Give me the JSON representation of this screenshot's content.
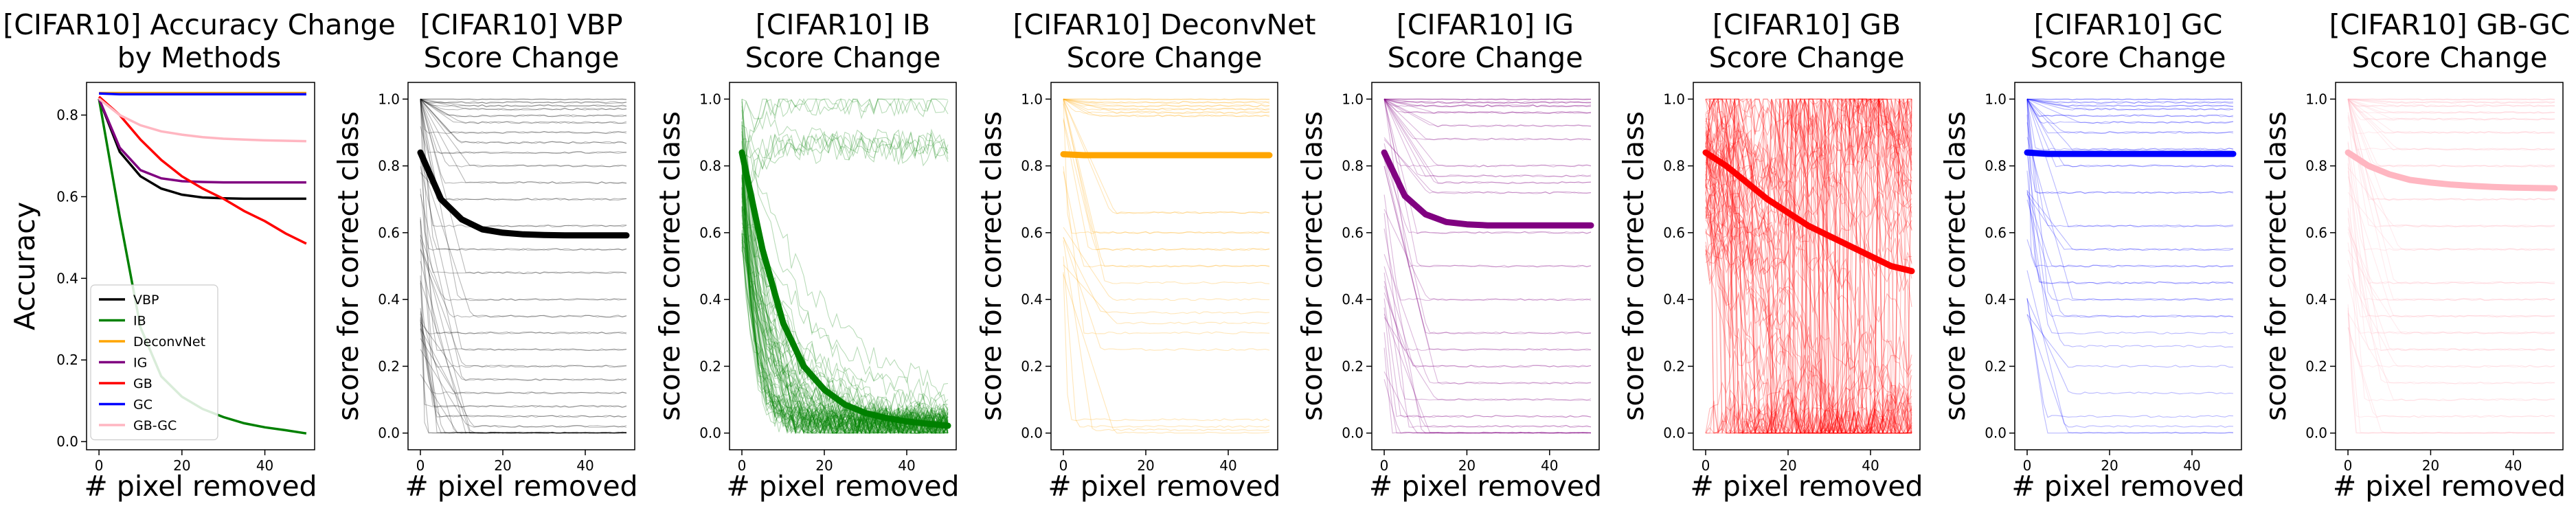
{
  "chart_data": [
    {
      "type": "line",
      "title": "[CIFAR10] Accuracy Change\nby Methods",
      "xlabel": "# pixel removed",
      "ylabel": "Accuracy",
      "xlim": [
        -3,
        52
      ],
      "ylim": [
        -0.02,
        0.88
      ],
      "xticks": [
        0,
        20,
        40
      ],
      "yticks": [
        0.0,
        0.2,
        0.4,
        0.6,
        0.8
      ],
      "ytick_labels": [
        "0.0",
        "0.2",
        "0.4",
        "0.6",
        "0.8"
      ],
      "legend_position": "lower-left",
      "x": [
        0,
        5,
        10,
        15,
        20,
        25,
        30,
        35,
        40,
        45,
        50
      ],
      "series": [
        {
          "name": "VBP",
          "color": "#000000",
          "values": [
            0.84,
            0.71,
            0.65,
            0.62,
            0.605,
            0.598,
            0.596,
            0.595,
            0.595,
            0.595,
            0.595
          ]
        },
        {
          "name": "IB",
          "color": "#008000",
          "values": [
            0.84,
            0.55,
            0.28,
            0.16,
            0.11,
            0.08,
            0.06,
            0.045,
            0.035,
            0.028,
            0.02
          ]
        },
        {
          "name": "DeconvNet",
          "color": "#ffa500",
          "values": [
            0.854,
            0.854,
            0.854,
            0.854,
            0.854,
            0.854,
            0.854,
            0.854,
            0.854,
            0.854,
            0.854
          ]
        },
        {
          "name": "IG",
          "color": "#800080",
          "values": [
            0.84,
            0.72,
            0.665,
            0.645,
            0.638,
            0.636,
            0.635,
            0.635,
            0.635,
            0.635,
            0.635
          ]
        },
        {
          "name": "GB",
          "color": "#ff0000",
          "values": [
            0.845,
            0.8,
            0.74,
            0.69,
            0.65,
            0.62,
            0.595,
            0.565,
            0.54,
            0.51,
            0.485
          ]
        },
        {
          "name": "GC",
          "color": "#0000ff",
          "values": [
            0.853,
            0.851,
            0.851,
            0.851,
            0.851,
            0.851,
            0.851,
            0.851,
            0.851,
            0.851,
            0.851
          ]
        },
        {
          "name": "GB-GC",
          "color": "#ffb6c1",
          "values": [
            0.84,
            0.8,
            0.775,
            0.76,
            0.752,
            0.746,
            0.742,
            0.74,
            0.738,
            0.737,
            0.736
          ]
        }
      ]
    },
    {
      "type": "line",
      "title": "[CIFAR10] VBP\nScore Change",
      "xlabel": "# pixel removed",
      "ylabel": "score for correct class",
      "xlim": [
        -3,
        52
      ],
      "ylim": [
        -0.05,
        1.05
      ],
      "xticks": [
        0,
        20,
        40
      ],
      "yticks": [
        0.0,
        0.2,
        0.4,
        0.6,
        0.8,
        1.0
      ],
      "ytick_labels": [
        "0.0",
        "0.2",
        "0.4",
        "0.6",
        "0.8",
        "1.0"
      ],
      "color": "#000000",
      "mean": {
        "x": [
          0,
          5,
          10,
          15,
          20,
          25,
          30,
          35,
          40,
          45,
          50
        ],
        "values": [
          0.84,
          0.7,
          0.64,
          0.61,
          0.6,
          0.595,
          0.593,
          0.592,
          0.592,
          0.592,
          0.592
        ]
      },
      "samples": {
        "count": 60,
        "style": "flat",
        "levels": [
          1.0,
          0.99,
          0.98,
          0.97,
          0.95,
          0.93,
          0.9,
          0.87,
          0.84,
          0.8,
          0.75,
          0.7,
          0.62,
          0.55,
          0.48,
          0.4,
          0.35,
          0.3,
          0.25,
          0.2,
          0.16,
          0.12,
          0.08,
          0.05,
          0.02,
          0.0,
          0.0,
          0.0,
          0.0,
          0.0
        ]
      }
    },
    {
      "type": "line",
      "title": "[CIFAR10] IB\nScore Change",
      "xlabel": "# pixel removed",
      "ylabel": "score for correct class",
      "xlim": [
        -3,
        52
      ],
      "ylim": [
        -0.05,
        1.05
      ],
      "xticks": [
        0,
        20,
        40
      ],
      "yticks": [
        0.0,
        0.2,
        0.4,
        0.6,
        0.8,
        1.0
      ],
      "ytick_labels": [
        "0.0",
        "0.2",
        "0.4",
        "0.6",
        "0.8",
        "1.0"
      ],
      "color": "#008000",
      "mean": {
        "x": [
          0,
          5,
          10,
          15,
          20,
          25,
          30,
          35,
          40,
          45,
          50
        ],
        "values": [
          0.84,
          0.55,
          0.33,
          0.2,
          0.13,
          0.085,
          0.06,
          0.045,
          0.035,
          0.028,
          0.022
        ]
      },
      "samples": {
        "count": 90,
        "style": "decay",
        "levels": [
          1.0,
          0.98,
          0.95,
          0.9,
          0.8
        ]
      }
    },
    {
      "type": "line",
      "title": "[CIFAR10] DeconvNet\nScore Change",
      "xlabel": "# pixel removed",
      "ylabel": "score for correct class",
      "xlim": [
        -3,
        52
      ],
      "ylim": [
        -0.05,
        1.05
      ],
      "xticks": [
        0,
        20,
        40
      ],
      "yticks": [
        0.0,
        0.2,
        0.4,
        0.6,
        0.8,
        1.0
      ],
      "ytick_labels": [
        "0.0",
        "0.2",
        "0.4",
        "0.6",
        "0.8",
        "1.0"
      ],
      "color": "#ffa500",
      "mean": {
        "x": [
          0,
          5,
          10,
          15,
          20,
          25,
          30,
          35,
          40,
          45,
          50
        ],
        "values": [
          0.835,
          0.832,
          0.832,
          0.832,
          0.832,
          0.832,
          0.832,
          0.832,
          0.832,
          0.832,
          0.832
        ]
      },
      "samples": {
        "count": 30,
        "style": "flat",
        "levels": [
          1.0,
          0.99,
          0.98,
          0.97,
          0.96,
          0.95,
          0.66,
          0.6,
          0.55,
          0.5,
          0.45,
          0.4,
          0.36,
          0.33,
          0.3,
          0.25,
          0.04,
          0.02,
          0.01,
          0.0
        ]
      }
    },
    {
      "type": "line",
      "title": "[CIFAR10] IG\nScore Change",
      "xlabel": "# pixel removed",
      "ylabel": "score for correct class",
      "xlim": [
        -3,
        52
      ],
      "ylim": [
        -0.05,
        1.05
      ],
      "xticks": [
        0,
        20,
        40
      ],
      "yticks": [
        0.0,
        0.2,
        0.4,
        0.6,
        0.8,
        1.0
      ],
      "ytick_labels": [
        "0.0",
        "0.2",
        "0.4",
        "0.6",
        "0.8",
        "1.0"
      ],
      "color": "#800080",
      "mean": {
        "x": [
          0,
          5,
          10,
          15,
          20,
          25,
          30,
          35,
          40,
          45,
          50
        ],
        "values": [
          0.84,
          0.71,
          0.655,
          0.632,
          0.625,
          0.622,
          0.622,
          0.622,
          0.622,
          0.622,
          0.622
        ]
      },
      "samples": {
        "count": 50,
        "style": "flat",
        "levels": [
          1.0,
          0.99,
          0.98,
          0.96,
          0.92,
          0.88,
          0.8,
          0.77,
          0.75,
          0.72,
          0.6,
          0.5,
          0.4,
          0.3,
          0.25,
          0.2,
          0.15,
          0.1,
          0.05,
          0.02,
          0.0,
          0.0,
          0.0
        ]
      }
    },
    {
      "type": "line",
      "title": "[CIFAR10] GB\nScore Change",
      "xlabel": "# pixel removed",
      "ylabel": "score for correct class",
      "xlim": [
        -3,
        52
      ],
      "ylim": [
        -0.05,
        1.05
      ],
      "xticks": [
        0,
        20,
        40
      ],
      "yticks": [
        0.0,
        0.2,
        0.4,
        0.6,
        0.8,
        1.0
      ],
      "ytick_labels": [
        "0.0",
        "0.2",
        "0.4",
        "0.6",
        "0.8",
        "1.0"
      ],
      "color": "#ff0000",
      "mean": {
        "x": [
          0,
          5,
          10,
          15,
          20,
          25,
          30,
          35,
          40,
          45,
          50
        ],
        "values": [
          0.84,
          0.8,
          0.75,
          0.7,
          0.66,
          0.62,
          0.59,
          0.56,
          0.53,
          0.5,
          0.485
        ]
      },
      "samples": {
        "count": 90,
        "style": "noisy",
        "levels": [
          1.0,
          0.99,
          0.97,
          0.9
        ]
      }
    },
    {
      "type": "line",
      "title": "[CIFAR10] GC\nScore Change",
      "xlabel": "# pixel removed",
      "ylabel": "score for correct class",
      "xlim": [
        -3,
        52
      ],
      "ylim": [
        -0.05,
        1.05
      ],
      "xticks": [
        0,
        20,
        40
      ],
      "yticks": [
        0.0,
        0.2,
        0.4,
        0.6,
        0.8,
        1.0
      ],
      "ytick_labels": [
        "0.0",
        "0.2",
        "0.4",
        "0.6",
        "0.8",
        "1.0"
      ],
      "color": "#0000ff",
      "mean": {
        "x": [
          0,
          5,
          10,
          15,
          20,
          25,
          30,
          35,
          40,
          45,
          50
        ],
        "values": [
          0.84,
          0.836,
          0.836,
          0.836,
          0.836,
          0.836,
          0.836,
          0.836,
          0.836,
          0.836,
          0.836
        ]
      },
      "samples": {
        "count": 40,
        "style": "flat",
        "levels": [
          1.0,
          0.99,
          0.98,
          0.97,
          0.95,
          0.93,
          0.9,
          0.85,
          0.8,
          0.72,
          0.62,
          0.55,
          0.5,
          0.45,
          0.4,
          0.35,
          0.3,
          0.26,
          0.2,
          0.12,
          0.05,
          0.02,
          0.0,
          0.0
        ]
      }
    },
    {
      "type": "line",
      "title": "[CIFAR10] GB-GC\nScore Change",
      "xlabel": "# pixel removed",
      "ylabel": "score for correct class",
      "xlim": [
        -3,
        52
      ],
      "ylim": [
        -0.05,
        1.05
      ],
      "xticks": [
        0,
        20,
        40
      ],
      "yticks": [
        0.0,
        0.2,
        0.4,
        0.6,
        0.8,
        1.0
      ],
      "ytick_labels": [
        "0.0",
        "0.2",
        "0.4",
        "0.6",
        "0.8",
        "1.0"
      ],
      "color": "#ffb6c1",
      "mean": {
        "x": [
          0,
          5,
          10,
          15,
          20,
          25,
          30,
          35,
          40,
          45,
          50
        ],
        "values": [
          0.84,
          0.8,
          0.775,
          0.758,
          0.75,
          0.744,
          0.74,
          0.737,
          0.735,
          0.734,
          0.733
        ]
      },
      "samples": {
        "count": 60,
        "style": "flat",
        "levels": [
          1.0,
          0.99,
          0.98,
          0.96,
          0.94,
          0.9,
          0.85,
          0.8,
          0.7,
          0.62,
          0.55,
          0.45,
          0.4,
          0.35,
          0.3,
          0.25,
          0.2,
          0.15,
          0.1,
          0.05,
          0.0,
          0.0
        ]
      }
    }
  ]
}
